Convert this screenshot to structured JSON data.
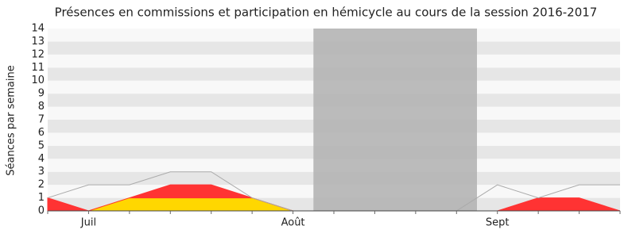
{
  "chart_data": {
    "type": "stacked-area",
    "title": "Présences en commissions et participation en hémicycle au cours de la session 2016-2017",
    "y_label": "Séances par semaine",
    "categories": [
      null,
      "Juil",
      null,
      null,
      null,
      null,
      "Août",
      null,
      null,
      null,
      null,
      "Sept",
      null,
      null,
      null
    ],
    "ylim": [
      0,
      14
    ],
    "yticks": [
      0,
      1,
      2,
      3,
      4,
      5,
      6,
      7,
      8,
      9,
      10,
      11,
      12,
      13,
      14
    ],
    "shaded_range": [
      6.5,
      10.5
    ],
    "shaded_color": "#b0b0b0",
    "series": [
      {
        "color": "#ffd700",
        "values": [
          0,
          0,
          1,
          1,
          1,
          1,
          0,
          0,
          0,
          0,
          0,
          0,
          0,
          0,
          0
        ]
      },
      {
        "color": "#ff3333",
        "values": [
          1,
          0,
          0,
          1,
          1,
          0,
          0,
          0,
          0,
          0,
          0,
          0,
          1,
          1,
          0
        ]
      },
      {
        "color": "#aaaaaa",
        "style": "line",
        "values": [
          1,
          2,
          2,
          3,
          3,
          1,
          0,
          0,
          0,
          0,
          0,
          2,
          1,
          2,
          2
        ]
      }
    ]
  }
}
